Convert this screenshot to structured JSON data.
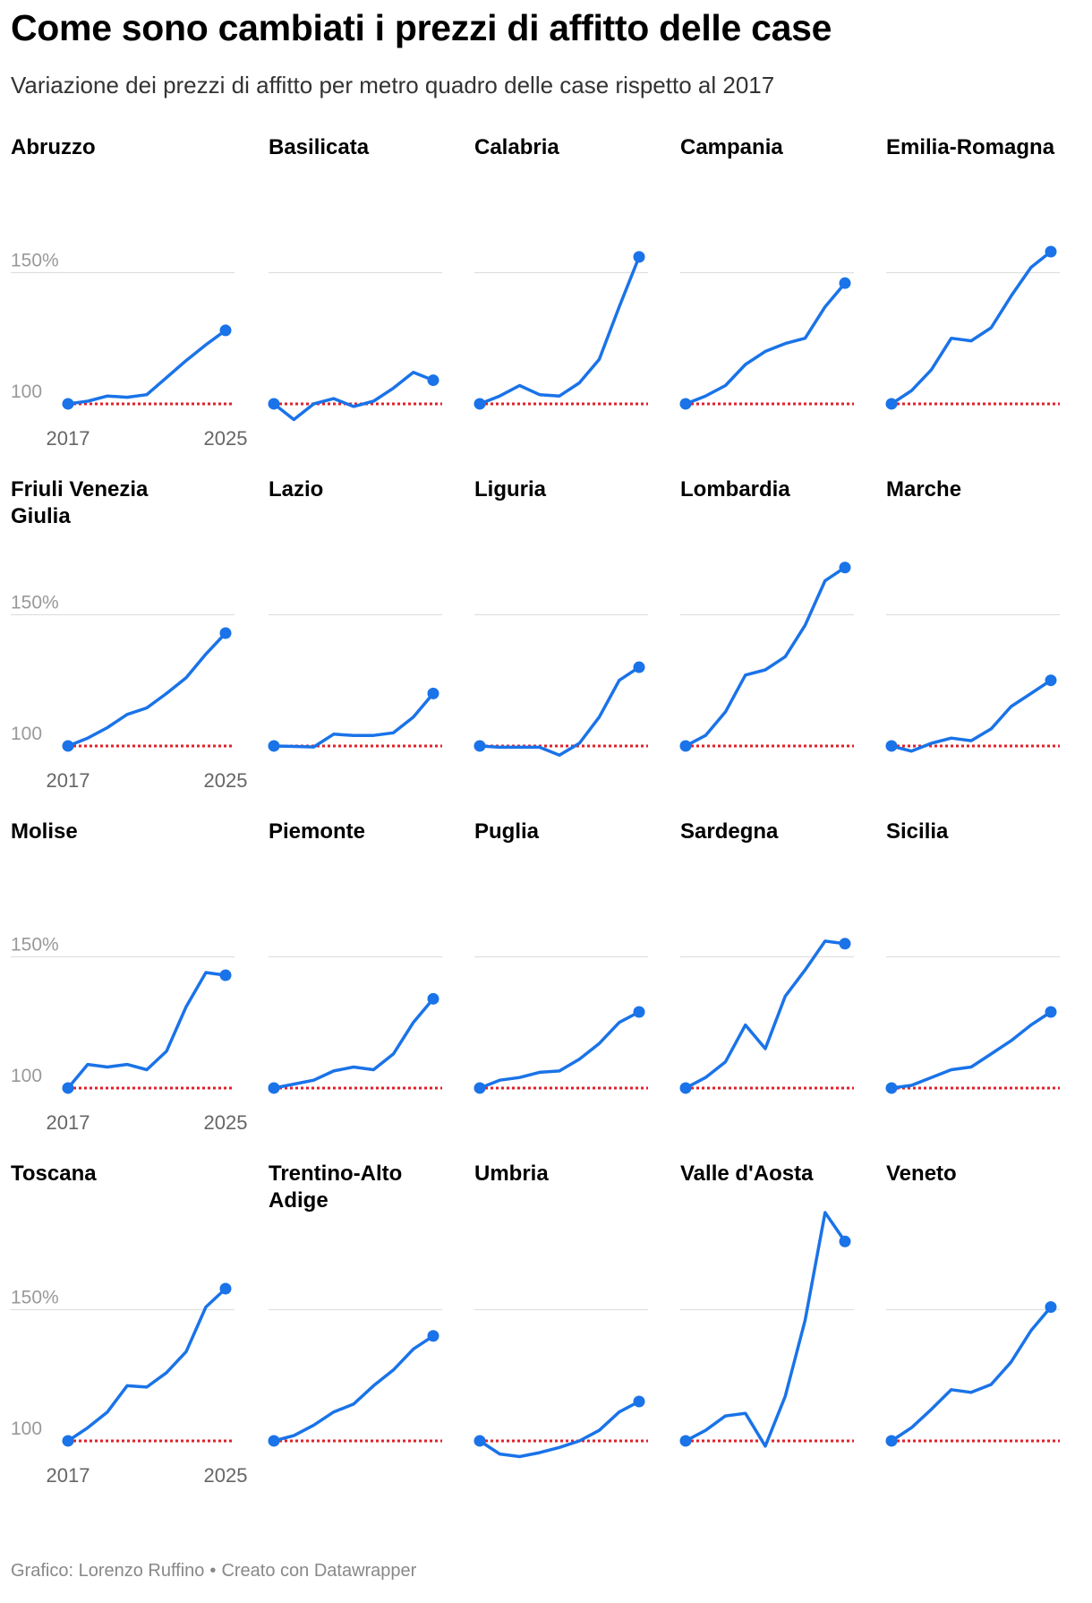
{
  "title": "Come sono cambiati i prezzi di affitto delle case",
  "subtitle": "Variazione dei prezzi di affitto per metro quadro delle case rispetto al 2017",
  "footer": {
    "credit": "Grafico: Lorenzo Ruffino",
    "separator": "•",
    "tool": "Creato con Datawrapper"
  },
  "colors": {
    "line": "#1a73e8",
    "baseline": "#e0202a",
    "grid": "#dddddd",
    "tick": "#999999"
  },
  "chart_data": {
    "type": "line",
    "x": [
      2017,
      2018,
      2019,
      2020,
      2021,
      2022,
      2023,
      2024,
      2025
    ],
    "y_ticks": [
      {
        "value": 100,
        "label": "100"
      },
      {
        "value": 150,
        "label": "150%"
      }
    ],
    "x_ticks": [
      {
        "value": 2017,
        "label": "2017"
      },
      {
        "value": 2025,
        "label": "2025"
      }
    ],
    "baseline": 100,
    "ylim": [
      92,
      172
    ],
    "series": [
      {
        "name": "Abruzzo",
        "values": [
          100,
          101,
          103,
          102.5,
          103.5,
          110,
          116.5,
          122.5,
          128
        ]
      },
      {
        "name": "Basilicata",
        "values": [
          100,
          94,
          100,
          102,
          99,
          101,
          106,
          112,
          109
        ]
      },
      {
        "name": "Calabria",
        "values": [
          100,
          103,
          107,
          103.5,
          103,
          108,
          117,
          137,
          156
        ]
      },
      {
        "name": "Campania",
        "values": [
          100,
          103,
          107,
          115,
          120,
          123,
          125,
          137,
          146
        ]
      },
      {
        "name": "Emilia-Romagna",
        "values": [
          100,
          105,
          113,
          125,
          124,
          129,
          141,
          152,
          158
        ]
      },
      {
        "name": "Friuli Venezia Giulia",
        "values": [
          100,
          103,
          107,
          112,
          114.5,
          120,
          126,
          135,
          143
        ]
      },
      {
        "name": "Lazio",
        "values": [
          100,
          99.8,
          99.6,
          104.5,
          104,
          104,
          105,
          111,
          120
        ]
      },
      {
        "name": "Liguria",
        "values": [
          100,
          99.5,
          99.5,
          99.5,
          96.5,
          101,
          111,
          125,
          130
        ]
      },
      {
        "name": "Lombardia",
        "values": [
          100,
          104,
          113,
          127,
          129,
          134,
          146,
          163,
          168
        ]
      },
      {
        "name": "Marche",
        "values": [
          100,
          98,
          101,
          103,
          102,
          106.5,
          115,
          120,
          125
        ]
      },
      {
        "name": "Molise",
        "values": [
          100,
          109,
          108,
          109,
          107,
          114,
          131,
          144,
          143
        ]
      },
      {
        "name": "Piemonte",
        "values": [
          100,
          101.5,
          103,
          106.5,
          108,
          107,
          113,
          125,
          134
        ]
      },
      {
        "name": "Puglia",
        "values": [
          100,
          103,
          104,
          106,
          106.5,
          111,
          117,
          125,
          129
        ]
      },
      {
        "name": "Sardegna",
        "values": [
          100,
          104,
          110,
          124,
          115,
          135,
          145,
          156,
          155
        ]
      },
      {
        "name": "Sicilia",
        "values": [
          100,
          101,
          104,
          107,
          108,
          113,
          118,
          124,
          129
        ]
      },
      {
        "name": "Toscana",
        "values": [
          100,
          105,
          111,
          121,
          120.5,
          126,
          134,
          151,
          158
        ]
      },
      {
        "name": "Trentino-Alto Adige",
        "values": [
          100,
          102,
          106,
          111,
          114,
          121,
          127,
          135,
          140
        ]
      },
      {
        "name": "Umbria",
        "values": [
          100,
          95,
          94,
          95.5,
          97.5,
          100,
          104,
          111,
          115
        ]
      },
      {
        "name": "Valle d'Aosta",
        "values": [
          100,
          104,
          109.5,
          110.5,
          98,
          117,
          146,
          187,
          176
        ]
      },
      {
        "name": "Veneto",
        "values": [
          100,
          105,
          112,
          119.5,
          118.5,
          121.5,
          130,
          142,
          151
        ]
      }
    ]
  }
}
